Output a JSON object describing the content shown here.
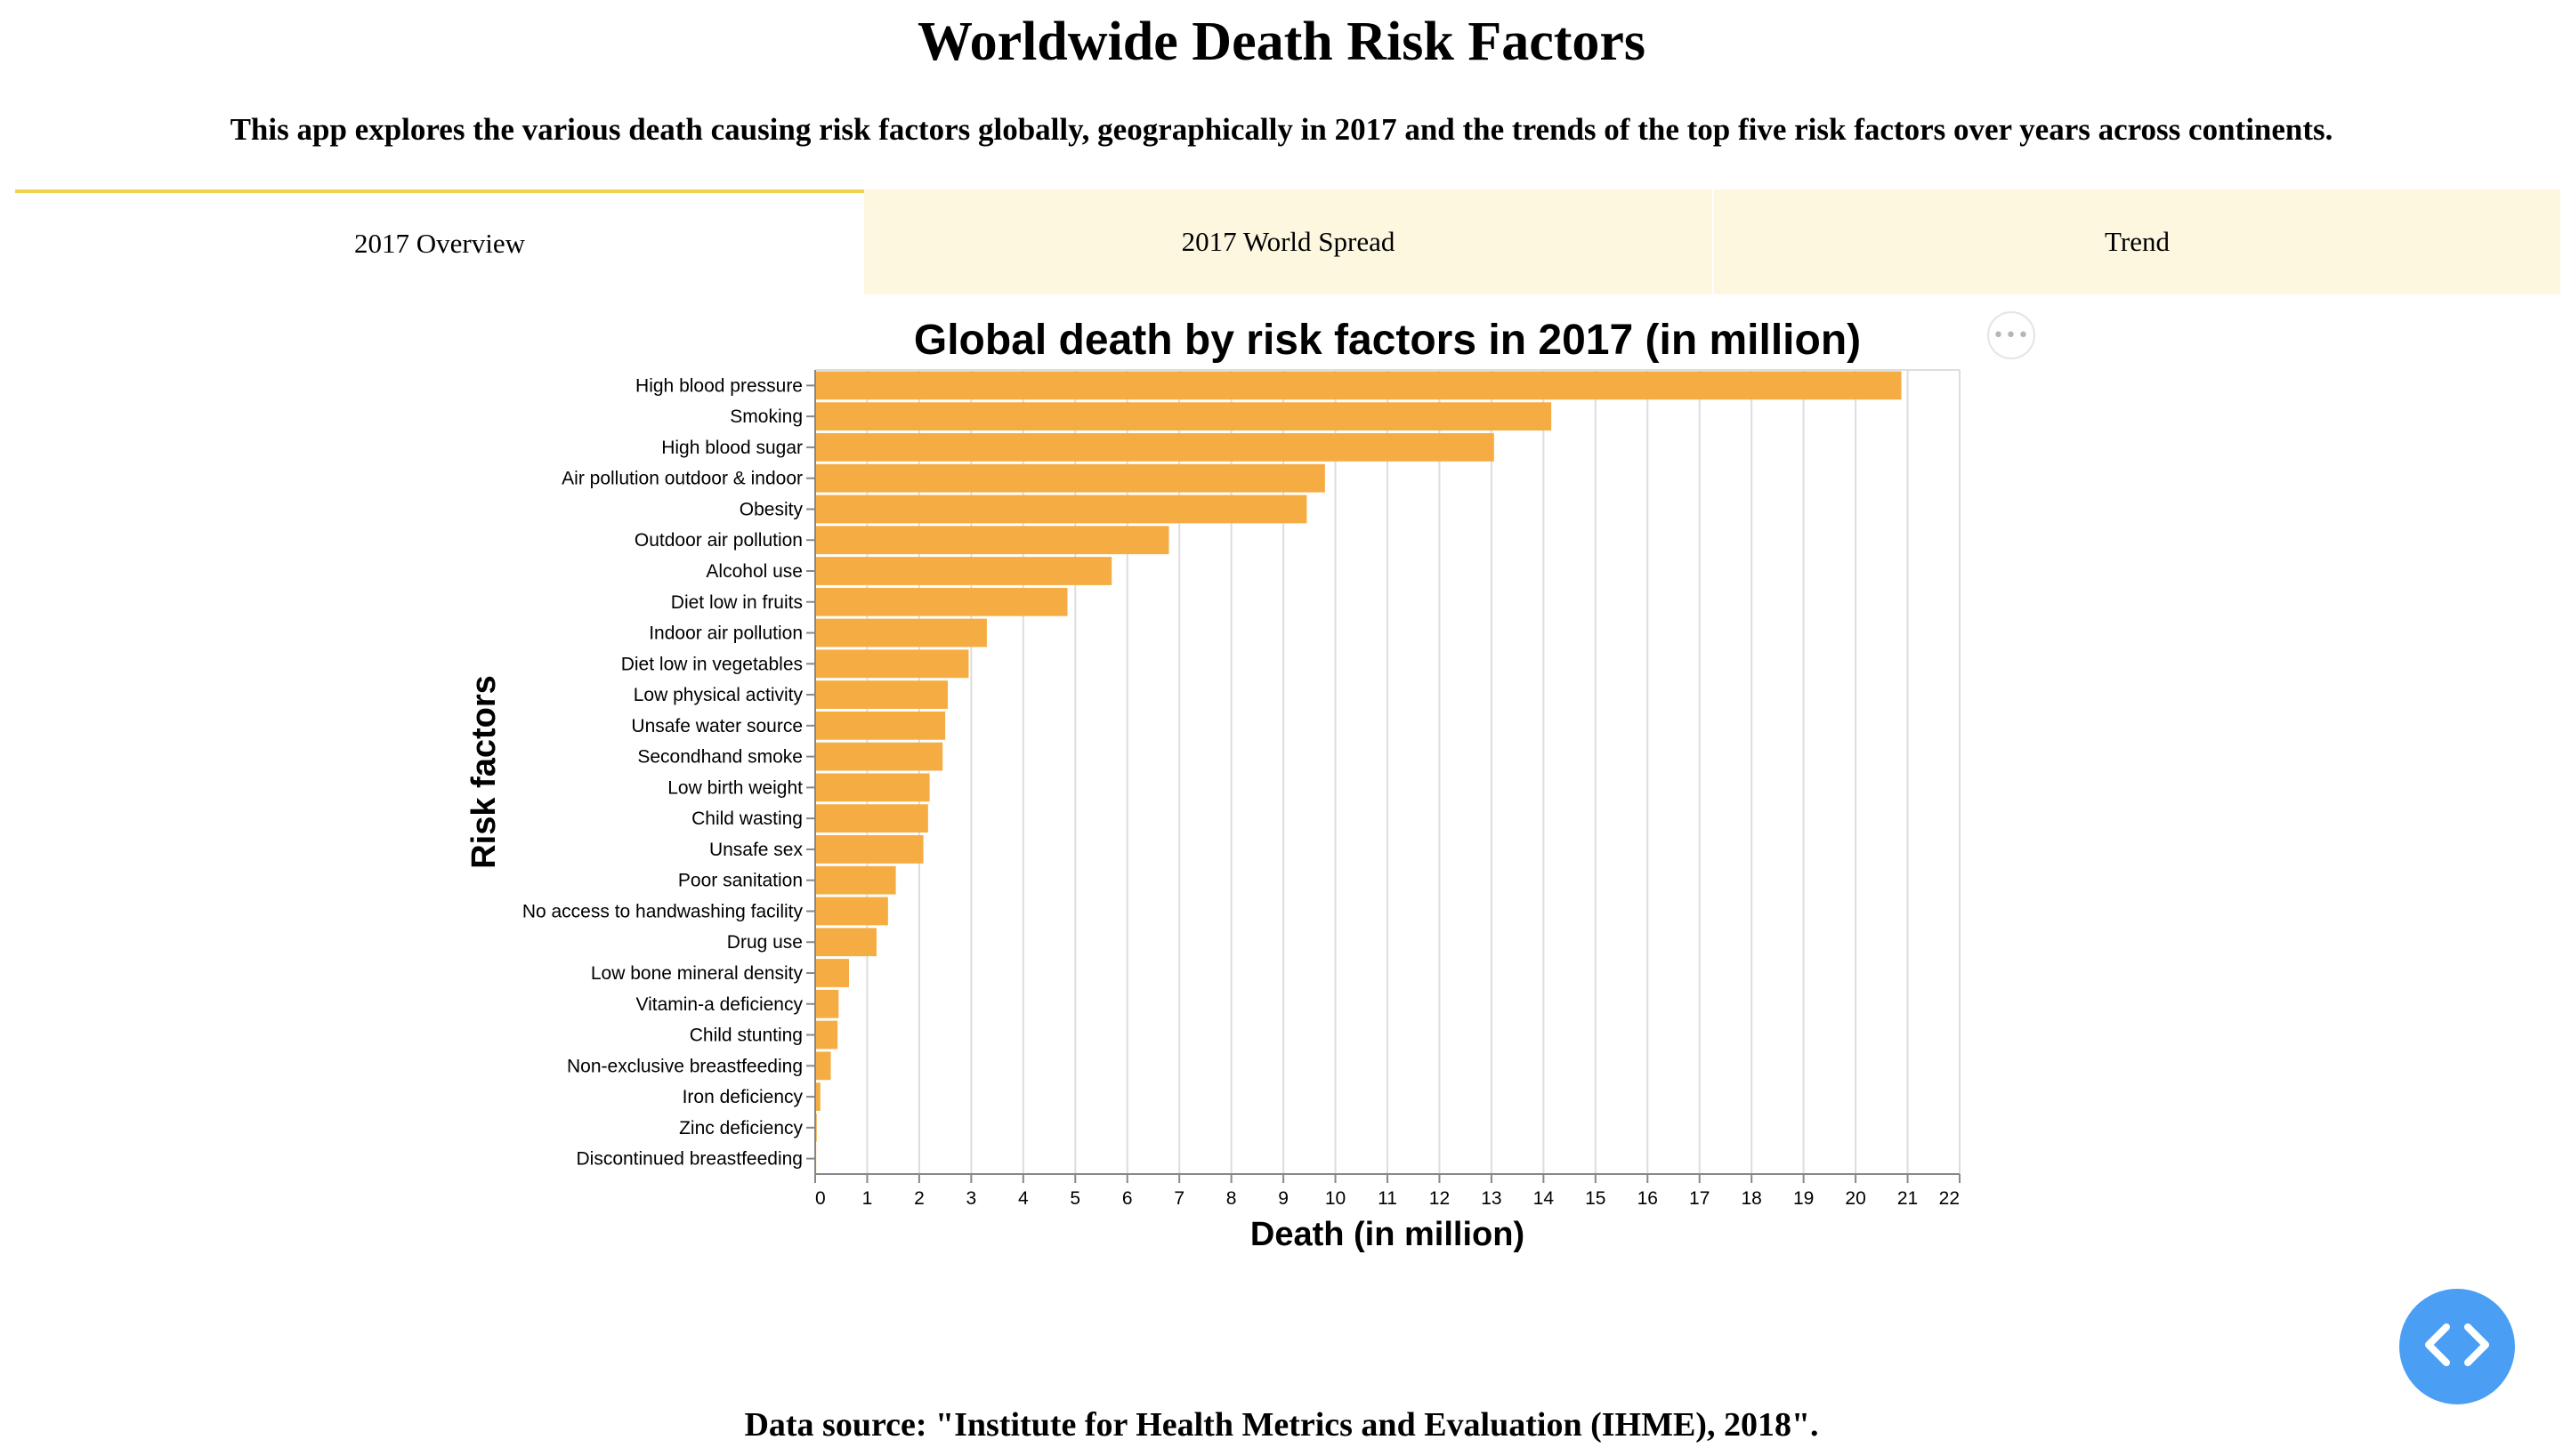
{
  "header": {
    "title": "Worldwide Death Risk Factors",
    "subtitle": "This app explores the various death causing risk factors globally, geographically in 2017 and the trends of the top five risk factors over years across continents."
  },
  "tabs": [
    {
      "label": "2017 Overview",
      "active": true
    },
    {
      "label": "2017 World Spread",
      "active": false
    },
    {
      "label": "Trend",
      "active": false
    }
  ],
  "colors": {
    "bar": "#f5ad43",
    "tab_active_border": "#f5d04a",
    "tab_inactive_bg": "#fdf7e0",
    "fab": "#4a9ff5"
  },
  "menu": {
    "icon": "ellipsis-icon",
    "label": "•••"
  },
  "code_button": {
    "icon": "code-icon"
  },
  "chart_data": {
    "type": "bar",
    "orientation": "horizontal",
    "title": "Global death by risk factors in 2017 (in million)",
    "xlabel": "Death (in million)",
    "ylabel": "Risk factors",
    "xlim": [
      0,
      22
    ],
    "xticks": [
      0,
      1,
      2,
      3,
      4,
      5,
      6,
      7,
      8,
      9,
      10,
      11,
      12,
      13,
      14,
      15,
      16,
      17,
      18,
      19,
      20,
      21,
      22
    ],
    "grid": true,
    "categories": [
      "High blood pressure",
      "Smoking",
      "High blood sugar",
      "Air pollution outdoor & indoor",
      "Obesity",
      "Outdoor air pollution",
      "Alcohol use",
      "Diet low in fruits",
      "Indoor air pollution",
      "Diet low in vegetables",
      "Low physical activity",
      "Unsafe water source",
      "Secondhand smoke",
      "Low birth weight",
      "Child wasting",
      "Unsafe sex",
      "Poor sanitation",
      "No access to handwashing facility",
      "Drug use",
      "Low bone mineral density",
      "Vitamin-a deficiency",
      "Child stunting",
      "Non-exclusive breastfeeding",
      "Iron deficiency",
      "Zinc deficiency",
      "Discontinued breastfeeding"
    ],
    "values": [
      20.88,
      14.15,
      13.05,
      9.8,
      9.45,
      6.8,
      5.7,
      4.85,
      3.3,
      2.95,
      2.55,
      2.5,
      2.45,
      2.2,
      2.17,
      2.08,
      1.55,
      1.4,
      1.18,
      0.65,
      0.45,
      0.43,
      0.3,
      0.1,
      0.03,
      0.02
    ]
  },
  "footer": {
    "source": "Data source: \"Institute for Health Metrics and Evaluation (IHME), 2018\"."
  }
}
